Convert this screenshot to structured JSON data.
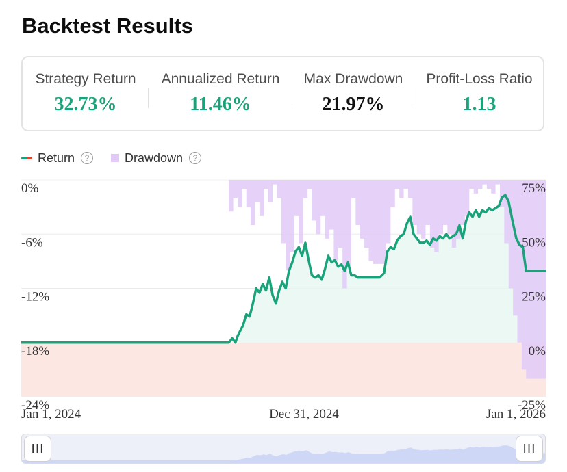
{
  "header": {
    "title": "Backtest Results"
  },
  "stats": [
    {
      "label": "Strategy Return",
      "value": "32.73%",
      "color": "#1aa37a"
    },
    {
      "label": "Annualized Return",
      "value": "11.46%",
      "color": "#1aa37a"
    },
    {
      "label": "Max Drawdown",
      "value": "21.97%",
      "color": "#111111"
    },
    {
      "label": "Profit-Loss Ratio",
      "value": "1.13",
      "color": "#1aa37a"
    }
  ],
  "legend": {
    "return_label": "Return",
    "drawdown_label": "Drawdown",
    "help_glyph": "?"
  },
  "slider": {
    "left_handle": "III",
    "right_handle": "III"
  },
  "colors": {
    "return_line": "#1aa37a",
    "return_fill_pos": "#e6f6f0",
    "return_fill_neg": "#fde7e3",
    "drawdown": "#e2caf8",
    "baseline": "#e0452f",
    "slider_fill": "#cfd7f7"
  },
  "chart_data": {
    "type": "line",
    "title": "",
    "x_ticks": [
      "Jan 1, 2024",
      "Dec 31, 2024",
      "Jan 1, 2026"
    ],
    "x_range": [
      0,
      24
    ],
    "y_left": {
      "ticks": [
        "0%",
        "-6%",
        "-12%",
        "-18%",
        "-24%"
      ],
      "values": [
        0,
        -6,
        -12,
        -18,
        -24
      ],
      "range": [
        -24,
        0
      ]
    },
    "y_right": {
      "ticks": [
        "75%",
        "50%",
        "25%",
        "0%",
        "-25%"
      ],
      "values": [
        75,
        50,
        25,
        0,
        -25
      ],
      "range": [
        -25,
        75
      ]
    },
    "series": [
      {
        "name": "Return",
        "axis": "right",
        "x": [
          0,
          9.5,
          9.65,
          9.8,
          9.9,
          10.0,
          10.15,
          10.3,
          10.45,
          10.6,
          10.75,
          10.9,
          11.05,
          11.2,
          11.35,
          11.5,
          11.65,
          11.8,
          11.95,
          12.1,
          12.25,
          12.4,
          12.55,
          12.7,
          12.85,
          13.0,
          13.15,
          13.3,
          13.45,
          13.6,
          13.75,
          13.9,
          14.05,
          14.2,
          14.35,
          14.5,
          14.65,
          14.8,
          14.95,
          15.1,
          15.25,
          15.4,
          15.6,
          16.0,
          16.4,
          16.6,
          16.75,
          16.9,
          17.05,
          17.2,
          17.35,
          17.5,
          17.65,
          17.8,
          17.95,
          18.1,
          18.25,
          18.4,
          18.55,
          18.7,
          18.85,
          19.0,
          19.15,
          19.3,
          19.45,
          19.6,
          19.75,
          19.9,
          20.05,
          20.2,
          20.35,
          20.5,
          20.65,
          20.8,
          20.95,
          21.1,
          21.25,
          21.4,
          21.55,
          21.7,
          21.85,
          22.0,
          22.15,
          22.3,
          22.5,
          22.65,
          22.8,
          22.95,
          23.1,
          24.0
        ],
        "values": [
          0,
          0,
          2,
          0,
          3,
          5,
          8,
          13,
          12,
          18,
          25,
          23,
          27,
          24,
          30,
          22,
          18,
          24,
          28,
          25,
          33,
          37,
          42,
          44,
          40,
          46,
          38,
          31,
          30,
          31,
          29,
          34,
          40,
          37,
          38,
          35,
          36,
          33,
          37,
          31,
          31,
          30,
          30,
          30,
          30,
          32,
          42,
          44,
          43,
          47,
          49,
          50,
          55,
          58,
          50,
          48,
          46,
          46,
          47,
          45,
          48,
          47,
          49,
          48,
          50,
          48,
          49,
          50,
          54,
          48,
          56,
          60,
          58,
          61,
          58,
          61,
          60,
          62,
          61,
          62,
          63,
          67,
          68,
          65,
          55,
          48,
          45,
          44,
          33,
          33
        ]
      },
      {
        "name": "Drawdown",
        "axis": "left",
        "x": [
          0,
          9.45,
          9.5,
          9.7,
          9.9,
          10.1,
          10.3,
          10.5,
          10.7,
          10.9,
          11.1,
          11.3,
          11.5,
          11.7,
          11.9,
          12.1,
          12.3,
          12.5,
          12.7,
          12.9,
          13.1,
          13.3,
          13.5,
          13.7,
          13.9,
          14.1,
          14.3,
          14.5,
          14.7,
          14.9,
          15.1,
          15.3,
          15.5,
          15.7,
          15.9,
          16.1,
          16.3,
          16.5,
          16.7,
          16.9,
          17.1,
          17.3,
          17.5,
          17.7,
          17.9,
          18.1,
          18.3,
          18.5,
          18.7,
          18.9,
          19.1,
          19.3,
          19.5,
          19.7,
          19.9,
          20.1,
          20.3,
          20.5,
          20.7,
          20.9,
          21.1,
          21.3,
          21.5,
          21.7,
          21.9,
          22.1,
          22.3,
          22.5,
          22.7,
          22.9,
          23.1,
          24.0
        ],
        "values": [
          0,
          0,
          -3.5,
          -2,
          -3,
          -1,
          -3,
          -5,
          -2.5,
          -4,
          -1,
          -2.5,
          -0.5,
          -2,
          -7,
          -10,
          -8,
          -4,
          -7,
          -2,
          -1,
          -4.5,
          -6,
          -4,
          -6.5,
          -5.5,
          -9,
          -7.5,
          -12,
          -9.5,
          -2,
          -5,
          -6.5,
          -7.5,
          -9,
          -9.3,
          -9.3,
          -9.3,
          -7,
          -3,
          -1,
          -2,
          -1,
          -2,
          -5,
          -6,
          -6.5,
          -5,
          -7.5,
          -8,
          -6,
          -5,
          -6,
          -7.5,
          -6.5,
          -5,
          -4,
          -1,
          -1.5,
          -1,
          -0.5,
          -1,
          -1.5,
          -0.5,
          -3,
          -7,
          -12,
          -15,
          -18,
          -21,
          -22,
          -22
        ]
      }
    ]
  }
}
